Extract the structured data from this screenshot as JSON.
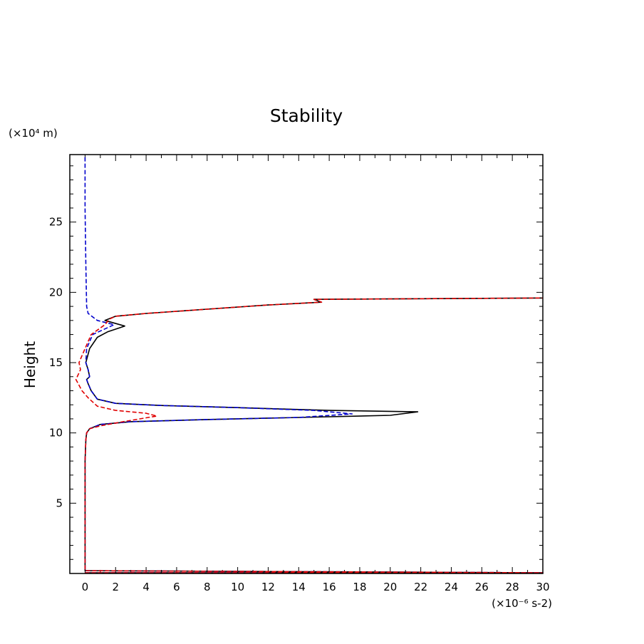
{
  "chart_data": {
    "type": "line",
    "title": "Stability",
    "xlabel": "",
    "x_unit_label": "(×10⁻⁶ s-2)",
    "ylabel": "Height",
    "y_unit_label": "(×10⁴ m)",
    "xlim": [
      -1,
      30
    ],
    "ylim": [
      0,
      29.8
    ],
    "x_ticks": [
      0,
      2,
      4,
      6,
      8,
      10,
      12,
      14,
      16,
      18,
      20,
      22,
      24,
      26,
      28,
      30
    ],
    "x_tick_labels": [
      "0",
      "2",
      "4",
      "6",
      "8",
      "10",
      "12",
      "14",
      "16",
      "18",
      "20",
      "22",
      "24",
      "26",
      "28",
      "30"
    ],
    "y_ticks": [
      5,
      10,
      15,
      20,
      25
    ],
    "y_tick_labels": [
      "5",
      "10",
      "15",
      "20",
      "25"
    ],
    "grid": false,
    "series": [
      {
        "name": "black-solid",
        "color": "#000000",
        "dash": "solid",
        "points": [
          [
            0,
            0.05
          ],
          [
            30,
            0.05
          ],
          [
            0,
            0.2
          ],
          [
            0,
            8
          ],
          [
            0.05,
            9.5
          ],
          [
            0.1,
            10
          ],
          [
            0.3,
            10.3
          ],
          [
            1,
            10.6
          ],
          [
            3,
            10.8
          ],
          [
            8,
            10.95
          ],
          [
            14,
            11.1
          ],
          [
            20,
            11.25
          ],
          [
            21.8,
            11.5
          ],
          [
            16,
            11.6
          ],
          [
            10,
            11.8
          ],
          [
            5,
            11.95
          ],
          [
            2,
            12.1
          ],
          [
            0.8,
            12.4
          ],
          [
            0.4,
            13
          ],
          [
            0.2,
            13.5
          ],
          [
            0.1,
            13.8
          ],
          [
            0.3,
            14
          ],
          [
            0.2,
            14.5
          ],
          [
            0.05,
            15
          ],
          [
            0.3,
            16
          ],
          [
            0.8,
            16.8
          ],
          [
            1.5,
            17.2
          ],
          [
            2.6,
            17.6
          ],
          [
            1.3,
            18
          ],
          [
            2,
            18.3
          ],
          [
            4,
            18.5
          ],
          [
            8,
            18.8
          ],
          [
            12,
            19.1
          ],
          [
            15.5,
            19.3
          ],
          [
            15,
            19.5
          ],
          [
            30,
            19.6
          ]
        ]
      },
      {
        "name": "blue-dashed",
        "color": "#0000cc",
        "dash": "dashed",
        "points": [
          [
            0,
            0.05
          ],
          [
            30,
            0.05
          ],
          [
            0,
            0.2
          ],
          [
            0,
            8
          ],
          [
            0.05,
            9.5
          ],
          [
            0.1,
            10
          ],
          [
            0.3,
            10.3
          ],
          [
            1,
            10.6
          ],
          [
            3,
            10.8
          ],
          [
            8,
            10.95
          ],
          [
            14,
            11.1
          ],
          [
            17.5,
            11.35
          ],
          [
            15,
            11.6
          ],
          [
            10,
            11.8
          ],
          [
            5,
            11.95
          ],
          [
            2,
            12.1
          ],
          [
            0.8,
            12.4
          ],
          [
            0.4,
            13
          ],
          [
            0.2,
            13.5
          ],
          [
            0.1,
            13.8
          ],
          [
            0.3,
            14
          ],
          [
            0.2,
            14.5
          ],
          [
            0.05,
            15
          ],
          [
            0.1,
            16
          ],
          [
            0.5,
            17
          ],
          [
            1.9,
            17.7
          ],
          [
            0.8,
            18
          ],
          [
            0.2,
            18.5
          ],
          [
            0.1,
            19
          ],
          [
            0.05,
            22
          ],
          [
            0,
            26
          ],
          [
            0,
            29.8
          ]
        ]
      },
      {
        "name": "red-dashed",
        "color": "#e00000",
        "dash": "dashed",
        "points": [
          [
            0,
            0.05
          ],
          [
            30,
            0.05
          ],
          [
            0,
            0.2
          ],
          [
            0,
            8
          ],
          [
            0.05,
            9.5
          ],
          [
            0.1,
            10
          ],
          [
            0.3,
            10.3
          ],
          [
            1,
            10.5
          ],
          [
            2.5,
            10.8
          ],
          [
            4.7,
            11.2
          ],
          [
            4,
            11.4
          ],
          [
            2,
            11.6
          ],
          [
            0.8,
            11.9
          ],
          [
            0.2,
            12.5
          ],
          [
            -0.2,
            13
          ],
          [
            -0.6,
            13.8
          ],
          [
            -0.3,
            14.5
          ],
          [
            -0.4,
            15
          ],
          [
            0,
            16
          ],
          [
            0.4,
            17
          ],
          [
            1.3,
            17.7
          ],
          [
            1.6,
            18.1
          ],
          [
            2,
            18.3
          ],
          [
            4,
            18.5
          ],
          [
            8,
            18.8
          ],
          [
            12,
            19.1
          ],
          [
            15.5,
            19.3
          ],
          [
            15,
            19.5
          ],
          [
            30,
            19.6
          ]
        ]
      }
    ]
  }
}
